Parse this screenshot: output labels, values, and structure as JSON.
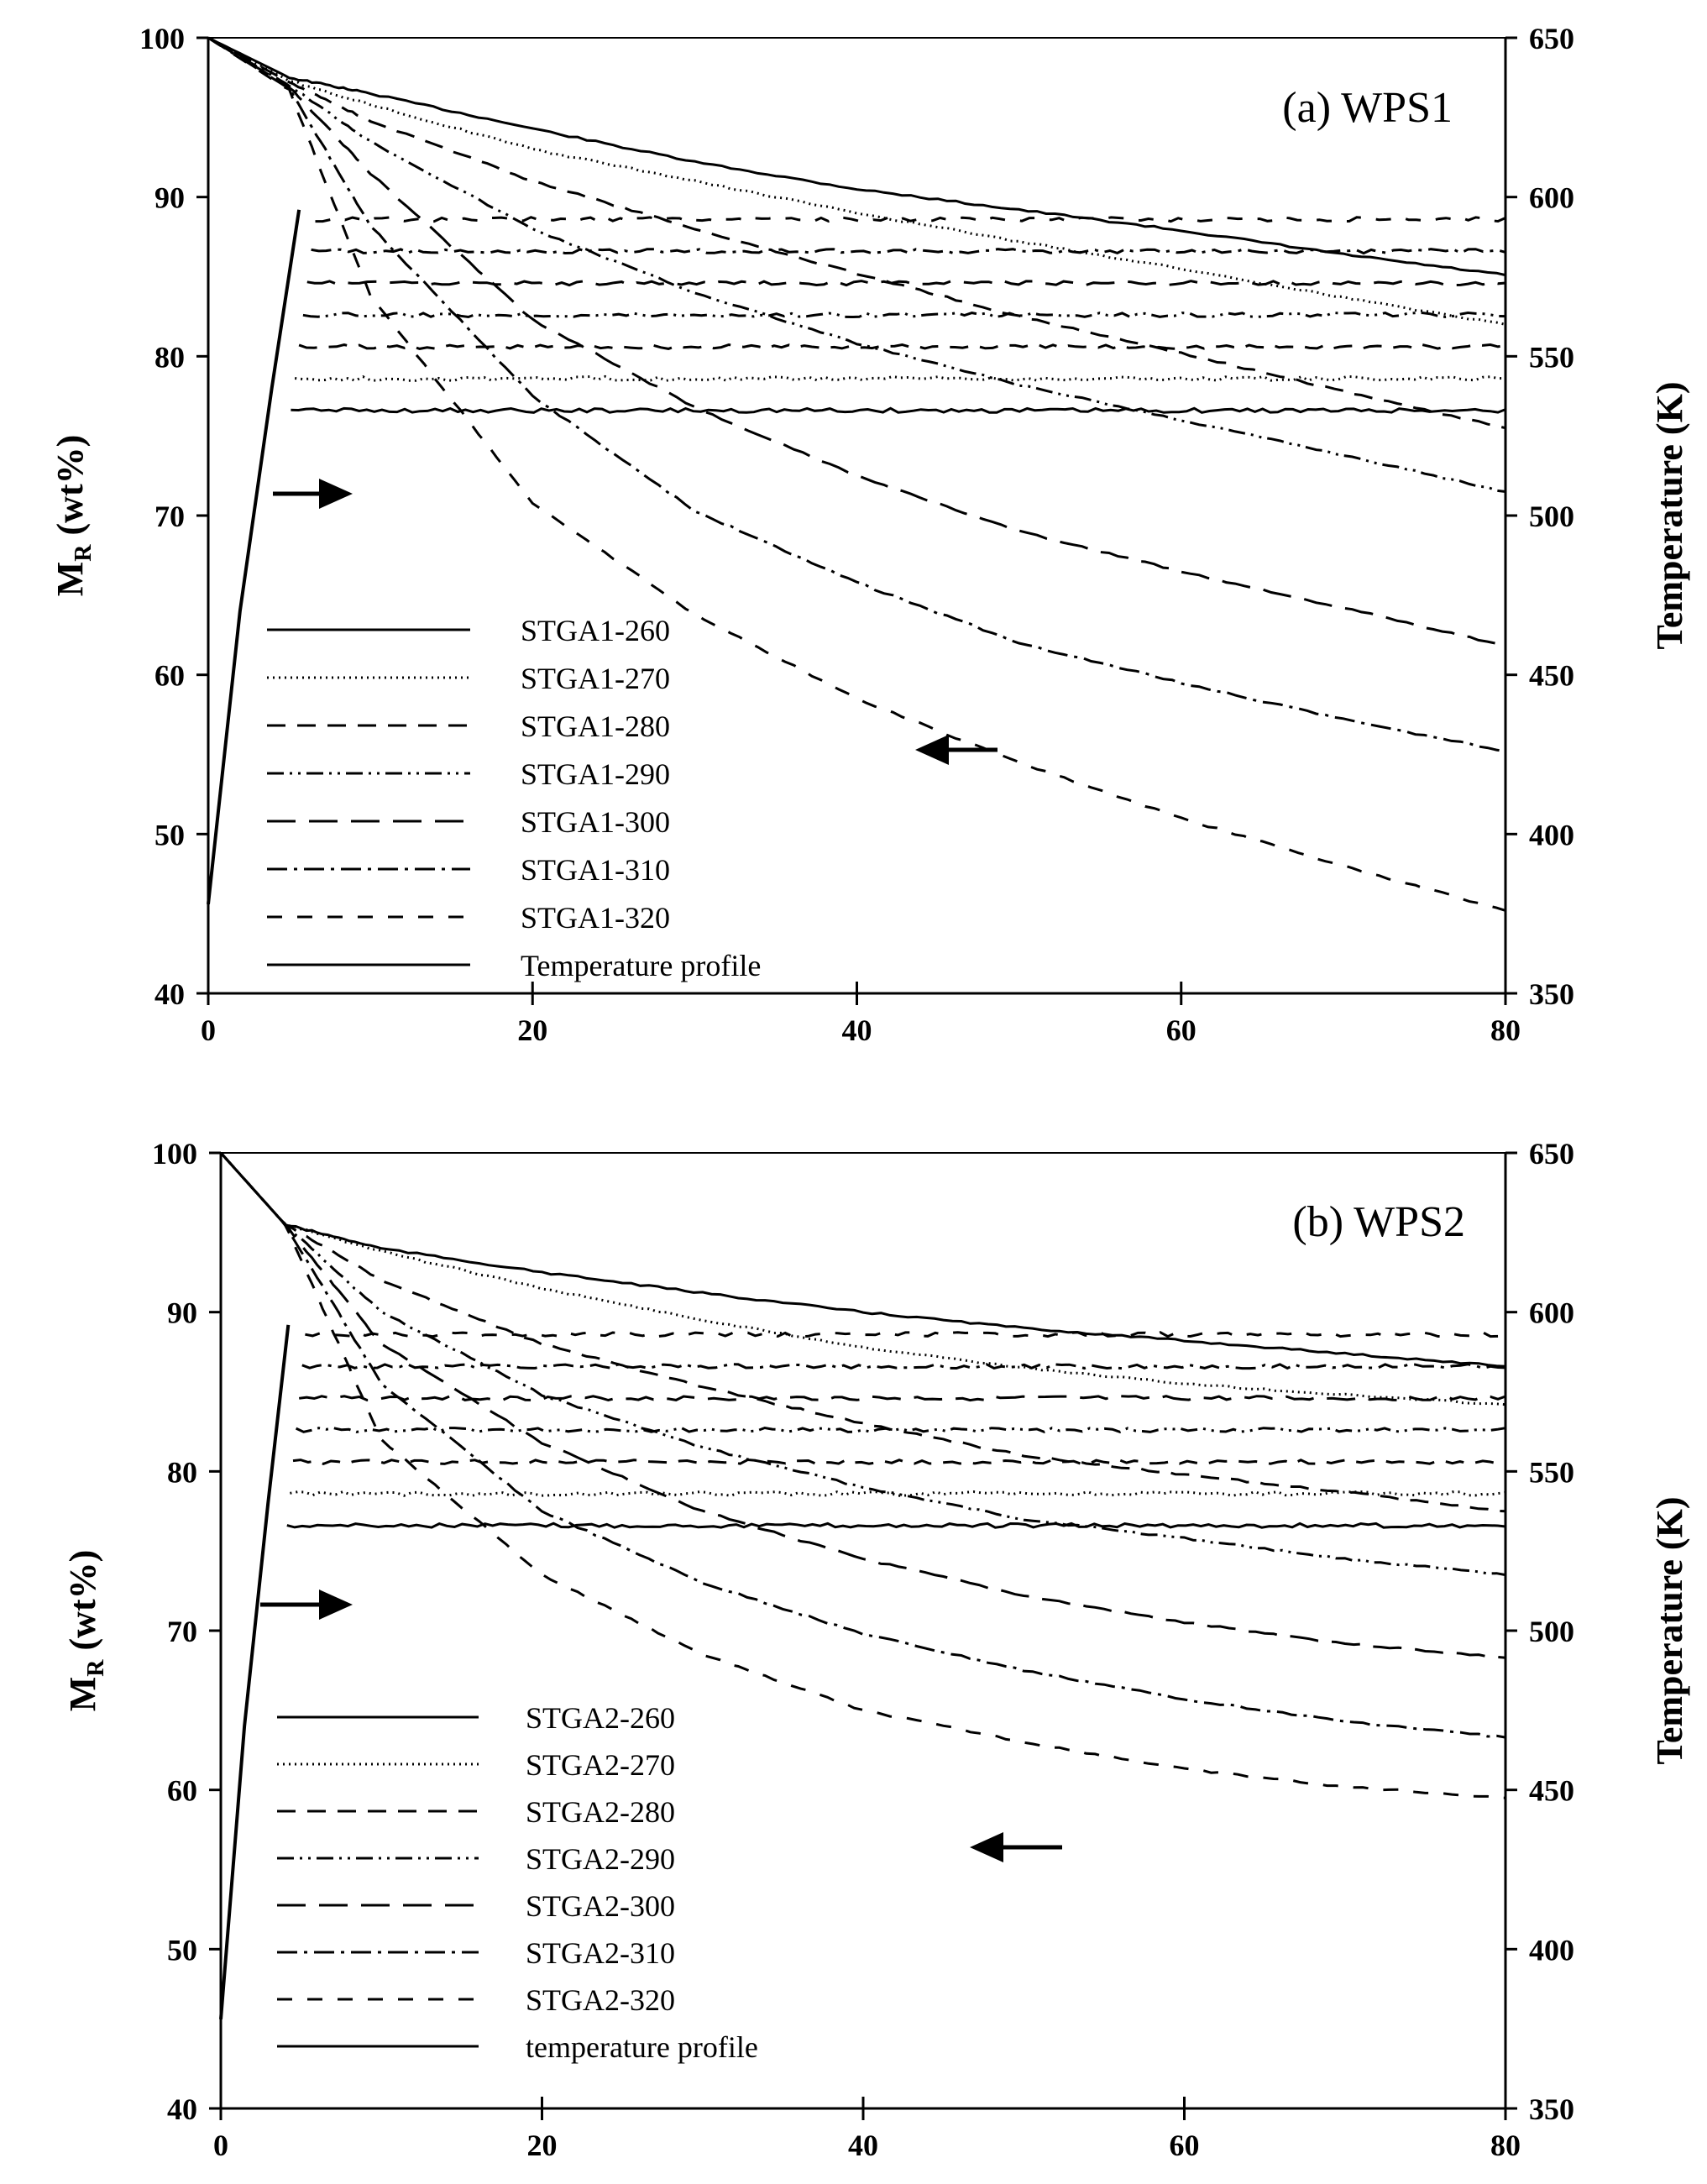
{
  "figure": {
    "caption_note": "",
    "colors": {
      "ink": "#000000",
      "background": "#ffffff"
    }
  },
  "chart_data": [
    {
      "type": "line",
      "title": "(a) WPS1",
      "xlabel": "",
      "ylabel_main": "M",
      "ylabel_sub": "R",
      "ylabel_rest": " (wt%)",
      "y2label": "Temperature (K)",
      "xlim": [
        0,
        80
      ],
      "ylim": [
        40,
        100
      ],
      "y2lim": [
        350,
        650
      ],
      "xticks": [
        0,
        20,
        40,
        60,
        80
      ],
      "yticks": [
        40,
        50,
        60,
        70,
        80,
        90,
        100
      ],
      "y2ticks": [
        350,
        400,
        450,
        500,
        550,
        600,
        650
      ],
      "legend_position": "bottom-left",
      "arrows": [
        "right (temperature axis)",
        "left (mass axis)"
      ],
      "series": [
        {
          "name": "STGA1-260",
          "style": "solid",
          "axis": "mass",
          "x": [
            0,
            5,
            10,
            20,
            30,
            40,
            50,
            60,
            70,
            80
          ],
          "y": [
            100,
            97.5,
            96.5,
            94.3,
            92.2,
            90.5,
            89.2,
            87.9,
            86.4,
            85.1
          ],
          "iso_temp": 533
        },
        {
          "name": "STGA1-270",
          "style": "dotted",
          "axis": "mass",
          "x": [
            0,
            5,
            10,
            20,
            30,
            40,
            50,
            60,
            70,
            80
          ],
          "y": [
            100,
            97.3,
            95.8,
            93.0,
            91.0,
            89.0,
            87.2,
            85.5,
            83.7,
            82.0
          ],
          "iso_temp": 543
        },
        {
          "name": "STGA1-280",
          "style": "dash",
          "axis": "mass",
          "x": [
            0,
            5,
            10,
            20,
            30,
            40,
            50,
            60,
            70,
            80
          ],
          "y": [
            100,
            97.2,
            94.8,
            91.0,
            88.0,
            85.2,
            82.5,
            80.2,
            77.8,
            75.5
          ],
          "iso_temp": 553
        },
        {
          "name": "STGA1-290",
          "style": "dash-dot-dot",
          "axis": "mass",
          "x": [
            0,
            5,
            10,
            20,
            30,
            40,
            50,
            60,
            70,
            80
          ],
          "y": [
            100,
            97.0,
            93.5,
            88.0,
            84.0,
            80.8,
            78.2,
            76.0,
            73.8,
            71.5
          ],
          "iso_temp": 563
        },
        {
          "name": "STGA1-300",
          "style": "long-dash",
          "axis": "mass",
          "x": [
            0,
            5,
            10,
            20,
            30,
            40,
            50,
            60,
            70,
            80
          ],
          "y": [
            100,
            96.9,
            91.5,
            82.3,
            76.8,
            72.5,
            69.0,
            66.5,
            64.2,
            61.8
          ],
          "iso_temp": 573
        },
        {
          "name": "STGA1-310",
          "style": "dash-dot",
          "axis": "mass",
          "x": [
            0,
            5,
            10,
            20,
            30,
            40,
            50,
            60,
            70,
            80
          ],
          "y": [
            100,
            96.8,
            88.2,
            77.5,
            70.3,
            65.8,
            62.0,
            59.5,
            57.2,
            55.2
          ],
          "iso_temp": 583
        },
        {
          "name": "STGA1-320",
          "style": "medium-dash",
          "axis": "mass",
          "x": [
            0,
            5,
            10,
            20,
            30,
            40,
            50,
            60,
            70,
            80
          ],
          "y": [
            100,
            96.7,
            83.8,
            70.8,
            63.8,
            58.5,
            54.5,
            51.0,
            48.0,
            45.2
          ],
          "iso_temp": 593
        },
        {
          "name": "Temperature profile",
          "style": "solid",
          "axis": "temperature",
          "x": [
            0,
            6,
            80
          ],
          "y": [
            378,
            "iso",
            "iso"
          ]
        }
      ]
    },
    {
      "type": "line",
      "title": "(b) WPS2",
      "xlabel": "",
      "ylabel_main": "M",
      "ylabel_sub": "R",
      "ylabel_rest": " (wt%)",
      "y2label": "Temperature (K)",
      "xlim": [
        0,
        80
      ],
      "ylim": [
        40,
        100
      ],
      "y2lim": [
        350,
        650
      ],
      "xticks": [
        0,
        20,
        40,
        60,
        80
      ],
      "yticks": [
        40,
        50,
        60,
        70,
        80,
        90,
        100
      ],
      "y2ticks": [
        350,
        400,
        450,
        500,
        550,
        600,
        650
      ],
      "legend_position": "bottom-left",
      "arrows": [
        "right (temperature axis)",
        "left (mass axis)"
      ],
      "series": [
        {
          "name": "STGA2-260",
          "style": "solid",
          "axis": "mass",
          "x": [
            0,
            4,
            10,
            20,
            30,
            40,
            50,
            60,
            70,
            80
          ],
          "y": [
            100,
            95.5,
            94.0,
            92.5,
            91.2,
            90.0,
            89.0,
            88.2,
            87.4,
            86.6
          ],
          "iso_temp": 533
        },
        {
          "name": "STGA2-270",
          "style": "dotted",
          "axis": "mass",
          "x": [
            0,
            4,
            10,
            20,
            30,
            40,
            50,
            60,
            70,
            80
          ],
          "y": [
            100,
            95.5,
            93.8,
            91.5,
            89.5,
            87.8,
            86.5,
            85.5,
            84.8,
            84.2
          ],
          "iso_temp": 543
        },
        {
          "name": "STGA2-280",
          "style": "dash",
          "axis": "mass",
          "x": [
            0,
            4,
            10,
            20,
            30,
            40,
            50,
            60,
            70,
            80
          ],
          "y": [
            100,
            95.5,
            92.0,
            88.0,
            85.3,
            83.0,
            81.0,
            79.8,
            78.7,
            77.5
          ],
          "iso_temp": 553
        },
        {
          "name": "STGA2-290",
          "style": "dash-dot-dot",
          "axis": "mass",
          "x": [
            0,
            4,
            10,
            20,
            30,
            40,
            50,
            60,
            70,
            80
          ],
          "y": [
            100,
            95.5,
            90.0,
            84.8,
            81.5,
            79.0,
            77.0,
            75.8,
            74.5,
            73.5
          ],
          "iso_temp": 563
        },
        {
          "name": "STGA2-300",
          "style": "long-dash",
          "axis": "mass",
          "x": [
            0,
            4,
            10,
            20,
            30,
            40,
            50,
            60,
            70,
            80
          ],
          "y": [
            100,
            95.5,
            88.0,
            81.8,
            77.5,
            74.5,
            72.2,
            70.5,
            69.2,
            68.3
          ],
          "iso_temp": 573
        },
        {
          "name": "STGA2-310",
          "style": "dash-dot",
          "axis": "mass",
          "x": [
            0,
            4,
            10,
            20,
            30,
            40,
            50,
            60,
            70,
            80
          ],
          "y": [
            100,
            95.5,
            85.5,
            77.5,
            73.0,
            69.8,
            67.5,
            65.7,
            64.3,
            63.3
          ],
          "iso_temp": 583
        },
        {
          "name": "STGA2-320",
          "style": "medium-dash",
          "axis": "mass",
          "x": [
            0,
            4,
            10,
            20,
            30,
            40,
            50,
            60,
            70,
            80
          ],
          "y": [
            100,
            95.5,
            82.0,
            73.5,
            68.5,
            65.0,
            63.0,
            61.3,
            60.2,
            59.5
          ],
          "iso_temp": 593
        },
        {
          "name": "temperature profile",
          "style": "solid",
          "axis": "temperature",
          "x": [
            0,
            4.5,
            80
          ],
          "y": [
            378,
            "iso",
            "iso"
          ]
        }
      ]
    }
  ]
}
